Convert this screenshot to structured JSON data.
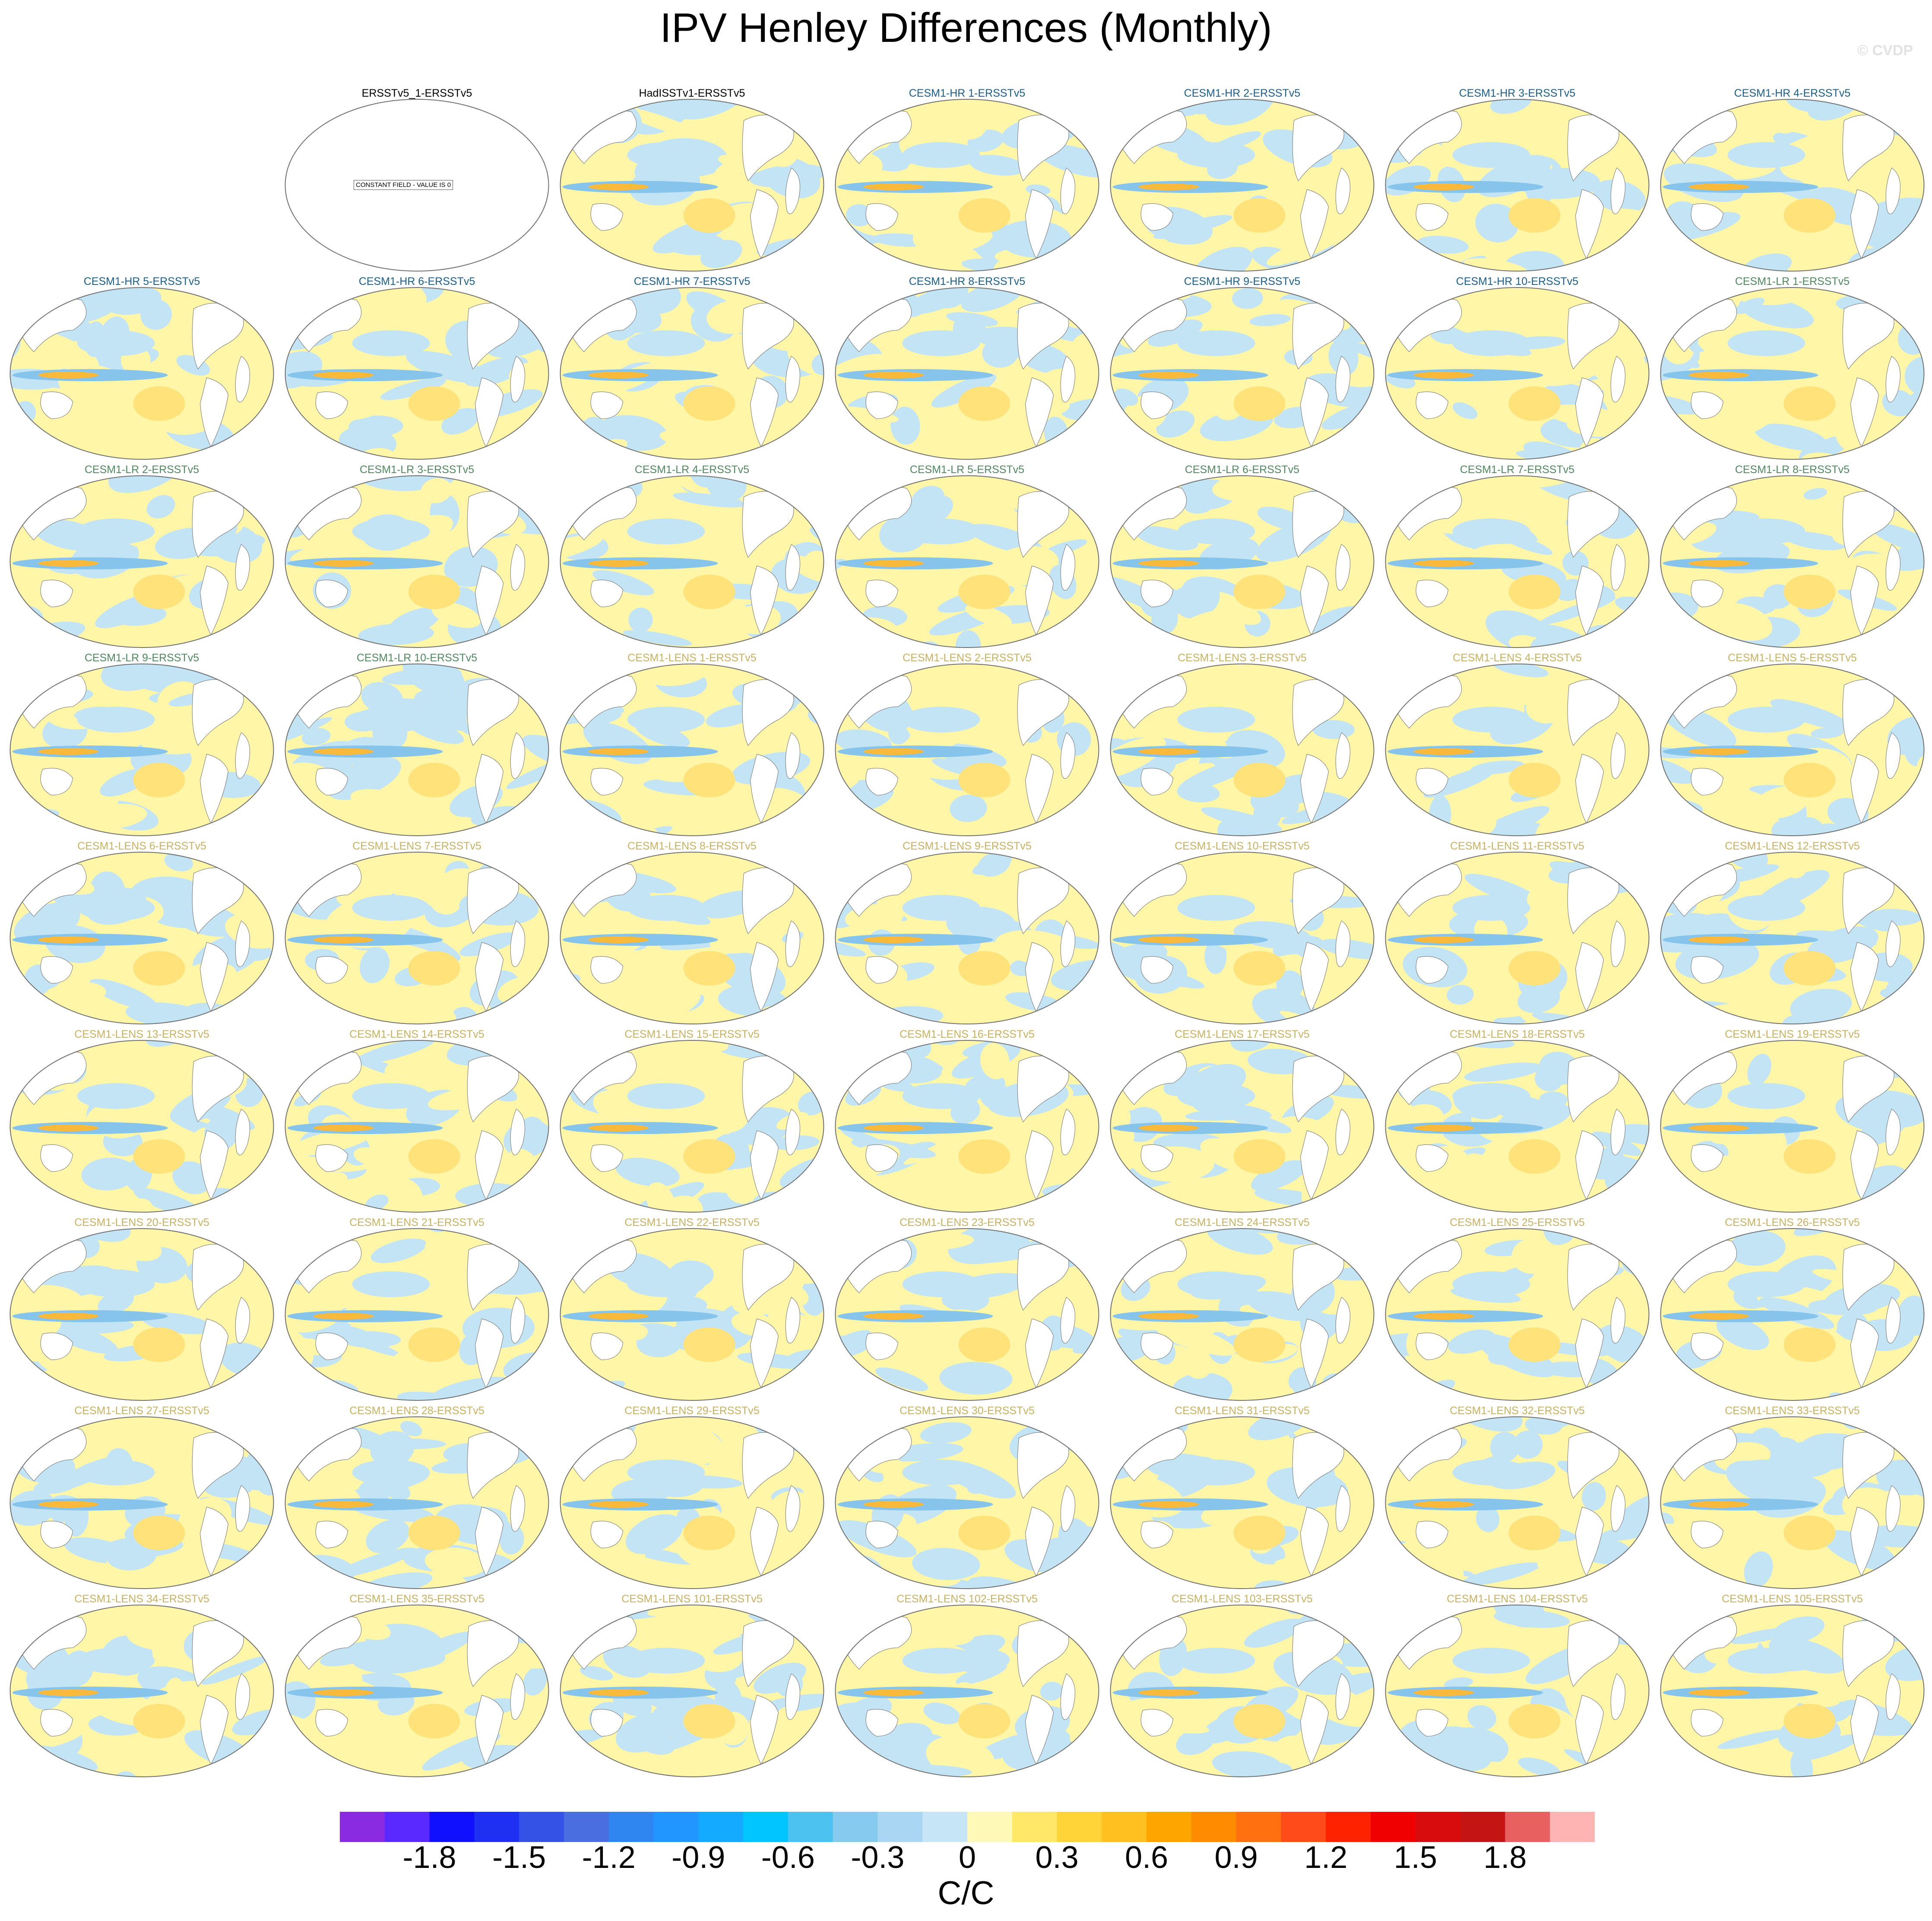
{
  "figure": {
    "title": "IPV Henley Differences (Monthly)",
    "watermark": "© CVDP",
    "units": "C/C"
  },
  "colorbar": {
    "tick_labels": [
      "-1.8",
      "-1.5",
      "-1.2",
      "-0.9",
      "-0.6",
      "-0.3",
      "0",
      "0.3",
      "0.6",
      "0.9",
      "1.2",
      "1.5",
      "1.8"
    ],
    "colors": [
      "#8a2be2",
      "#5a29ff",
      "#1010ff",
      "#2030f2",
      "#3552e6",
      "#4a6ee0",
      "#2f86f0",
      "#2196ff",
      "#14aaff",
      "#00c5ff",
      "#4bc2f0",
      "#86cbef",
      "#a8d6f3",
      "#c6e6f7",
      "#fff9b8",
      "#ffe868",
      "#ffd438",
      "#ffc020",
      "#ffa500",
      "#ff8c00",
      "#ff7010",
      "#ff4a1a",
      "#ff2200",
      "#f00000",
      "#d80c0c",
      "#c41414",
      "#e86060",
      "#ffb4b4"
    ]
  },
  "colors": {
    "label_reference": "#000000",
    "label_hr": "#1a5f8c",
    "label_lr": "#4f8a5e",
    "label_lens": "#c9b15e",
    "map_outline": "#707070",
    "ocean_positive": "#fff6a8",
    "ocean_negative": "#c2e4f4",
    "blue_anomaly": "#86c4ec",
    "orange_anomaly": "#f9b93a"
  },
  "panels": [
    {
      "label": "ERSSTv5_1-ERSSTv5",
      "group": "reference",
      "constant_field": true,
      "constant_note": "CONSTANT FIELD - VALUE IS 0"
    },
    {
      "label": "HadISSTv1-ERSSTv5",
      "group": "reference"
    },
    {
      "label": "CESM1-HR 1-ERSSTv5",
      "group": "hr"
    },
    {
      "label": "CESM1-HR 2-ERSSTv5",
      "group": "hr"
    },
    {
      "label": "CESM1-HR 3-ERSSTv5",
      "group": "hr"
    },
    {
      "label": "CESM1-HR 4-ERSSTv5",
      "group": "hr"
    },
    {
      "label": "CESM1-HR 5-ERSSTv5",
      "group": "hr"
    },
    {
      "label": "CESM1-HR 6-ERSSTv5",
      "group": "hr"
    },
    {
      "label": "CESM1-HR 7-ERSSTv5",
      "group": "hr"
    },
    {
      "label": "CESM1-HR 8-ERSSTv5",
      "group": "hr"
    },
    {
      "label": "CESM1-HR 9-ERSSTv5",
      "group": "hr"
    },
    {
      "label": "CESM1-HR 10-ERSSTv5",
      "group": "hr"
    },
    {
      "label": "CESM1-LR 1-ERSSTv5",
      "group": "lr"
    },
    {
      "label": "CESM1-LR 2-ERSSTv5",
      "group": "lr"
    },
    {
      "label": "CESM1-LR 3-ERSSTv5",
      "group": "lr"
    },
    {
      "label": "CESM1-LR 4-ERSSTv5",
      "group": "lr"
    },
    {
      "label": "CESM1-LR 5-ERSSTv5",
      "group": "lr"
    },
    {
      "label": "CESM1-LR 6-ERSSTv5",
      "group": "lr"
    },
    {
      "label": "CESM1-LR 7-ERSSTv5",
      "group": "lr"
    },
    {
      "label": "CESM1-LR 8-ERSSTv5",
      "group": "lr"
    },
    {
      "label": "CESM1-LR 9-ERSSTv5",
      "group": "lr"
    },
    {
      "label": "CESM1-LR 10-ERSSTv5",
      "group": "lr"
    },
    {
      "label": "CESM1-LENS 1-ERSSTv5",
      "group": "lens"
    },
    {
      "label": "CESM1-LENS 2-ERSSTv5",
      "group": "lens"
    },
    {
      "label": "CESM1-LENS 3-ERSSTv5",
      "group": "lens"
    },
    {
      "label": "CESM1-LENS 4-ERSSTv5",
      "group": "lens"
    },
    {
      "label": "CESM1-LENS 5-ERSSTv5",
      "group": "lens"
    },
    {
      "label": "CESM1-LENS 6-ERSSTv5",
      "group": "lens"
    },
    {
      "label": "CESM1-LENS 7-ERSSTv5",
      "group": "lens"
    },
    {
      "label": "CESM1-LENS 8-ERSSTv5",
      "group": "lens"
    },
    {
      "label": "CESM1-LENS 9-ERSSTv5",
      "group": "lens"
    },
    {
      "label": "CESM1-LENS 10-ERSSTv5",
      "group": "lens"
    },
    {
      "label": "CESM1-LENS 11-ERSSTv5",
      "group": "lens"
    },
    {
      "label": "CESM1-LENS 12-ERSSTv5",
      "group": "lens"
    },
    {
      "label": "CESM1-LENS 13-ERSSTv5",
      "group": "lens"
    },
    {
      "label": "CESM1-LENS 14-ERSSTv5",
      "group": "lens"
    },
    {
      "label": "CESM1-LENS 15-ERSSTv5",
      "group": "lens"
    },
    {
      "label": "CESM1-LENS 16-ERSSTv5",
      "group": "lens"
    },
    {
      "label": "CESM1-LENS 17-ERSSTv5",
      "group": "lens"
    },
    {
      "label": "CESM1-LENS 18-ERSSTv5",
      "group": "lens"
    },
    {
      "label": "CESM1-LENS 19-ERSSTv5",
      "group": "lens"
    },
    {
      "label": "CESM1-LENS 20-ERSSTv5",
      "group": "lens"
    },
    {
      "label": "CESM1-LENS 21-ERSSTv5",
      "group": "lens"
    },
    {
      "label": "CESM1-LENS 22-ERSSTv5",
      "group": "lens"
    },
    {
      "label": "CESM1-LENS 23-ERSSTv5",
      "group": "lens"
    },
    {
      "label": "CESM1-LENS 24-ERSSTv5",
      "group": "lens"
    },
    {
      "label": "CESM1-LENS 25-ERSSTv5",
      "group": "lens"
    },
    {
      "label": "CESM1-LENS 26-ERSSTv5",
      "group": "lens"
    },
    {
      "label": "CESM1-LENS 27-ERSSTv5",
      "group": "lens"
    },
    {
      "label": "CESM1-LENS 28-ERSSTv5",
      "group": "lens"
    },
    {
      "label": "CESM1-LENS 29-ERSSTv5",
      "group": "lens"
    },
    {
      "label": "CESM1-LENS 30-ERSSTv5",
      "group": "lens"
    },
    {
      "label": "CESM1-LENS 31-ERSSTv5",
      "group": "lens"
    },
    {
      "label": "CESM1-LENS 32-ERSSTv5",
      "group": "lens"
    },
    {
      "label": "CESM1-LENS 33-ERSSTv5",
      "group": "lens"
    },
    {
      "label": "CESM1-LENS 34-ERSSTv5",
      "group": "lens"
    },
    {
      "label": "CESM1-LENS 35-ERSSTv5",
      "group": "lens"
    },
    {
      "label": "CESM1-LENS 101-ERSSTv5",
      "group": "lens"
    },
    {
      "label": "CESM1-LENS 102-ERSSTv5",
      "group": "lens"
    },
    {
      "label": "CESM1-LENS 103-ERSSTv5",
      "group": "lens"
    },
    {
      "label": "CESM1-LENS 104-ERSSTv5",
      "group": "lens"
    },
    {
      "label": "CESM1-LENS 105-ERSSTv5",
      "group": "lens"
    }
  ]
}
